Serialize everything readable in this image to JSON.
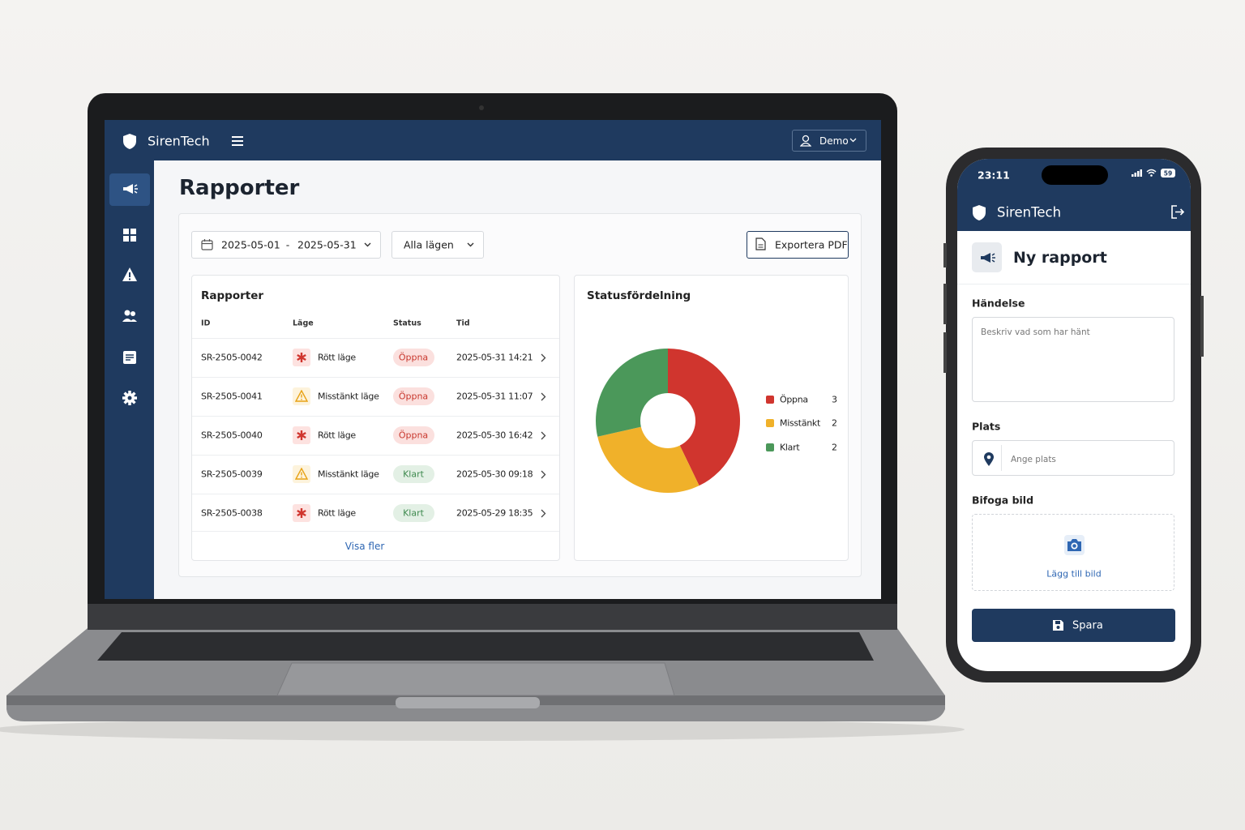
{
  "laptop": {
    "brand": "SirenTech",
    "user": "Demo",
    "page_title": "Rapporter",
    "date_from": "2025-05-01",
    "date_sep": "-",
    "date_to": "2025-05-31",
    "filter": "Alla lägen",
    "export": "Exportera PDF",
    "table": {
      "title": "Rapporter",
      "headers": [
        "ID",
        "Läge",
        "Status",
        "Tid"
      ],
      "rows": [
        [
          "SR-2505-0042",
          "Rött läge",
          "Öppna",
          "2025-05-31 14:21"
        ],
        [
          "SR-2505-0041",
          "Misstänkt läge",
          "Öppna",
          "2025-05-31 11:07"
        ],
        [
          "SR-2505-0040",
          "Rött läge",
          "Öppna",
          "2025-05-30 16:42"
        ],
        [
          "SR-2505-0039",
          "Misstänkt läge",
          "Klart",
          "2025-05-30 09:18"
        ],
        [
          "SR-2505-0038",
          "Rött läge",
          "Klart",
          "2025-05-29 18:35"
        ]
      ],
      "more": "Visa fler"
    }
  },
  "chart_data": {
    "type": "donut",
    "title": "Statusfördelning",
    "categories": [
      "Öppna",
      "Misstänkt",
      "Klart"
    ],
    "values": [
      3,
      2,
      2
    ],
    "colors": [
      "#d0352e",
      "#f0b12a",
      "#4b985a"
    ],
    "legend": "right"
  },
  "phone": {
    "time": "23:11",
    "battery": "59",
    "brand": "SirenTech",
    "title": "Ny rapport",
    "event_label": "Händelse",
    "event_placeholder": "Beskriv vad som har hänt",
    "place_label": "Plats",
    "place_placeholder": "Ange plats",
    "image_label": "Bifoga bild",
    "image_button": "Lägg till bild",
    "save": "Spara"
  }
}
